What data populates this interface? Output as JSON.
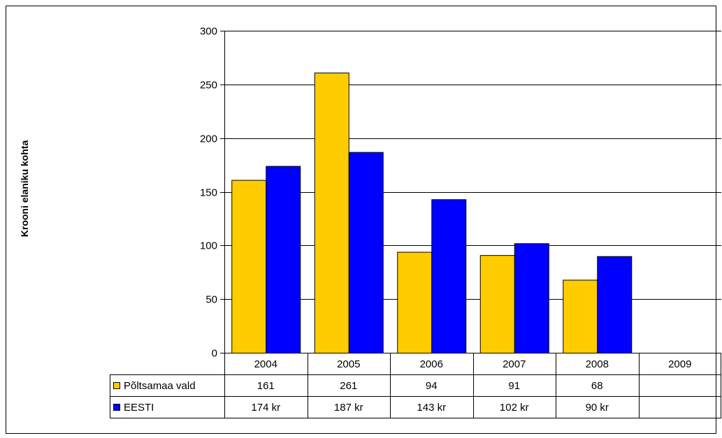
{
  "chart_data": {
    "type": "bar",
    "ylabel": "Krooni elaniku kohta",
    "ylim": [
      0,
      300
    ],
    "yticks": [
      "0",
      "50",
      "100",
      "150",
      "200",
      "250",
      "300"
    ],
    "categories": [
      "2004",
      "2005",
      "2006",
      "2007",
      "2008",
      "2009"
    ],
    "grid": true,
    "legend": "data-table",
    "series": [
      {
        "name": "Põltsamaa vald",
        "color": "#FFCC00",
        "values": [
          161,
          261,
          94,
          91,
          68,
          null
        ],
        "table_labels": [
          "161",
          "261",
          "94",
          "91",
          "68",
          ""
        ]
      },
      {
        "name": "EESTI",
        "color": "#0000FF",
        "values": [
          174,
          187,
          143,
          102,
          90,
          null
        ],
        "table_labels": [
          "174 kr",
          "187 kr",
          "143 kr",
          "102 kr",
          "90 kr",
          ""
        ]
      }
    ]
  }
}
